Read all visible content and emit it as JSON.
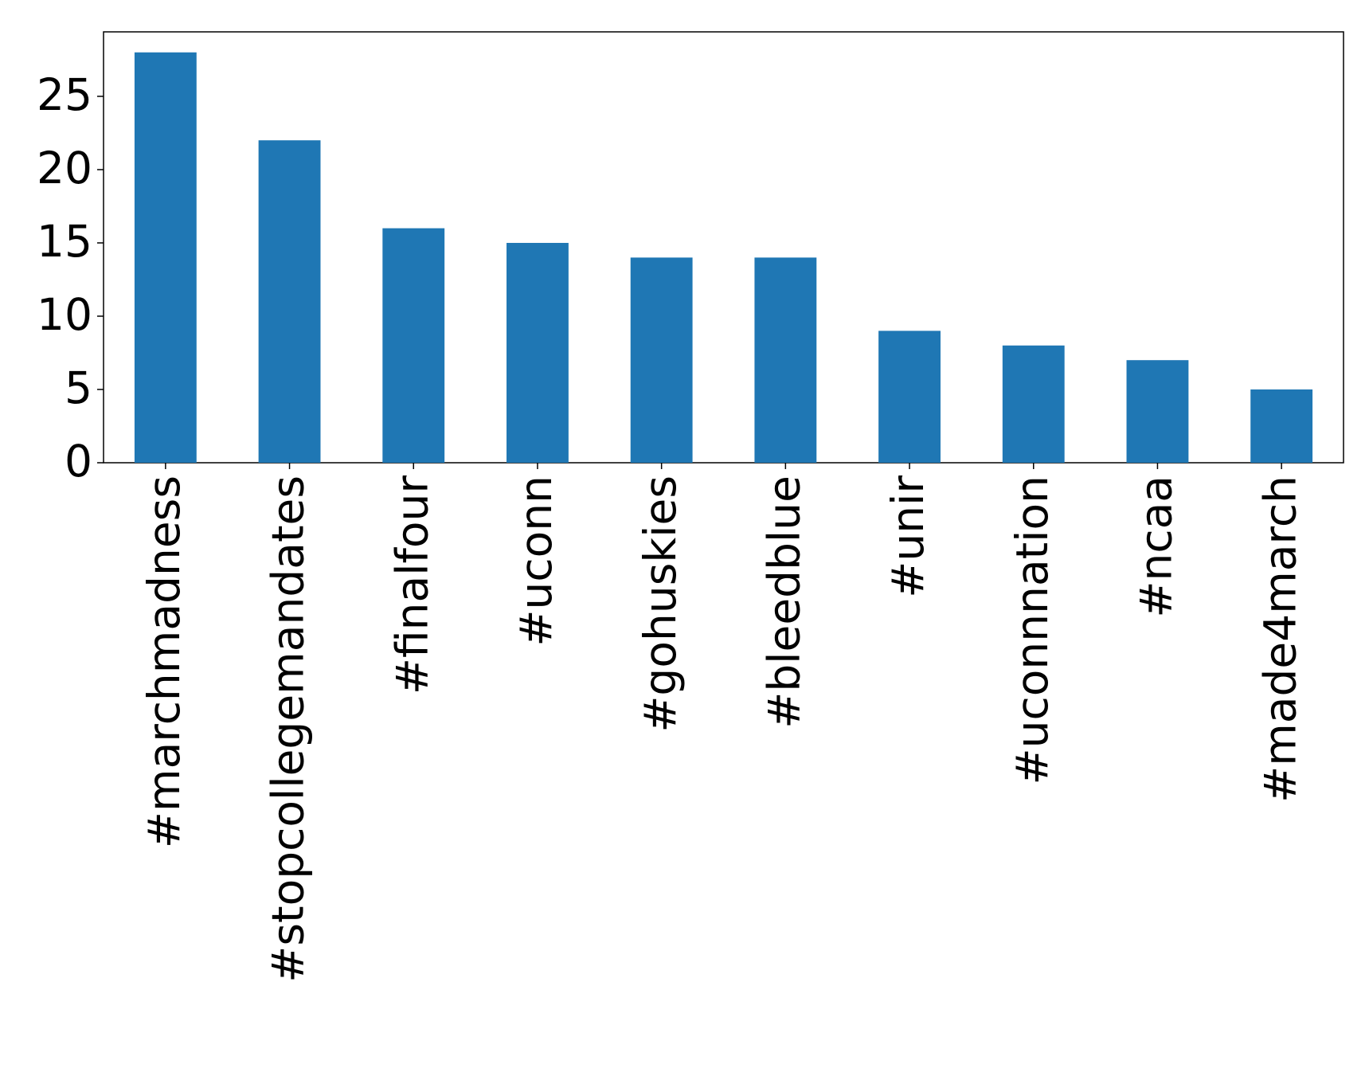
{
  "chart_data": {
    "type": "bar",
    "categories": [
      "#marchmadness",
      "#stopcollegemandates",
      "#finalfour",
      "#uconn",
      "#gohuskies",
      "#bleedblue",
      "#unir",
      "#uconnnation",
      "#ncaa",
      "#made4march"
    ],
    "values": [
      28,
      22,
      16,
      15,
      14,
      14,
      9,
      8,
      7,
      5
    ],
    "color": "#1f77b4",
    "ylim": [
      0,
      29.4
    ],
    "yticks": [
      0,
      5,
      10,
      15,
      20,
      25
    ],
    "grid": false
  }
}
